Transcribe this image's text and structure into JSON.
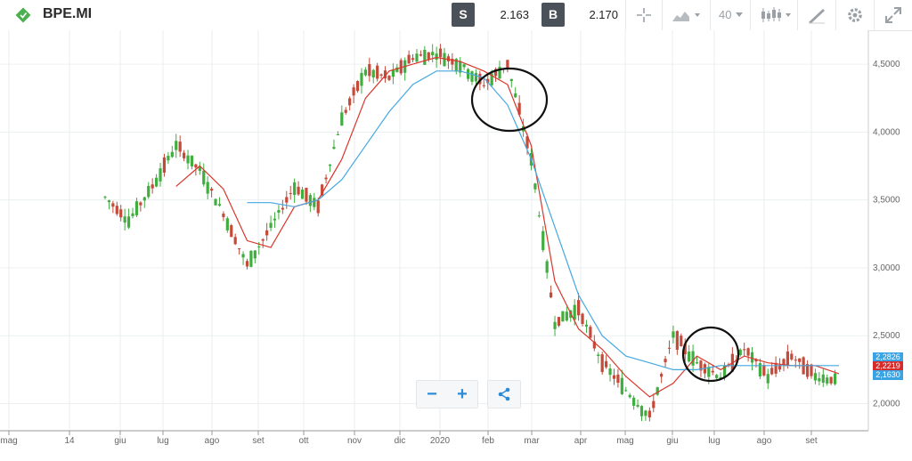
{
  "header": {
    "symbol": "BPE.MI",
    "sell_label": "S",
    "sell_price": "2.163",
    "buy_label": "B",
    "buy_price": "2.170",
    "timeframe_label": "40"
  },
  "colors": {
    "sell": "#4b5158",
    "buy": "#4b5158",
    "accent": "#2e8bd6",
    "ma_red": "#d9372b",
    "ma_blue": "#45a8e0",
    "candle_up": "#3fae3f",
    "candle_down": "#c44a3a",
    "logo": "#4caf50"
  },
  "icons": {
    "logo": "diamond-logo-icon",
    "crosshair": "crosshair-icon",
    "chart_type": "area-chart-icon",
    "candles": "candles-icon",
    "draw": "pencil-draw-icon",
    "settings": "gear-icon",
    "expand": "expand-icon",
    "zoom_out": "minus-icon",
    "zoom_in": "plus-icon",
    "share": "share-icon"
  },
  "zoom": {
    "minus": "−",
    "plus": "+"
  },
  "price_tags": {
    "upper": "2,2826",
    "middle": "2,2219",
    "lower": "2,1630"
  },
  "chart_data": {
    "type": "line",
    "title": "",
    "xlabel": "",
    "ylabel": "",
    "x_ticks": [
      "mag",
      "14",
      "giu",
      "lug",
      "ago",
      "set",
      "ott",
      "nov",
      "dic",
      "2020",
      "feb",
      "mar",
      "apr",
      "mag",
      "giu",
      "lug",
      "ago",
      "set"
    ],
    "y_ticks": [
      "2,0000",
      "2,5000",
      "3,0000",
      "3,5000",
      "4,0000",
      "4,5000"
    ],
    "ylim": [
      1.8,
      4.75
    ],
    "grid": true,
    "x": [
      "giu",
      "",
      "lug",
      "",
      "ago",
      "",
      "set",
      "",
      "ott",
      "",
      "nov",
      "",
      "dic",
      "",
      "2020",
      "",
      "feb",
      "",
      "mar",
      "",
      "apr",
      "",
      "mag",
      "",
      "giu",
      "",
      "lug",
      "",
      "ago",
      "",
      "set",
      ""
    ],
    "series": [
      {
        "name": "",
        "values": [
          3.52,
          3.35,
          3.6,
          3.9,
          3.72,
          3.4,
          3.02,
          3.3,
          3.6,
          3.45,
          4.1,
          4.45,
          4.4,
          4.55,
          4.58,
          4.5,
          4.35,
          4.5,
          3.8,
          2.6,
          2.7,
          2.3,
          2.1,
          1.9,
          2.5,
          2.3,
          2.2,
          2.4,
          2.2,
          2.35,
          2.2,
          2.17
        ]
      },
      {
        "name": "",
        "values": [
          null,
          null,
          null,
          3.6,
          3.75,
          3.58,
          3.2,
          3.15,
          3.45,
          3.5,
          3.8,
          4.25,
          4.45,
          4.5,
          4.55,
          4.52,
          4.45,
          4.35,
          3.9,
          2.9,
          2.55,
          2.4,
          2.2,
          2.05,
          2.15,
          2.35,
          2.25,
          2.35,
          2.3,
          2.28,
          2.28,
          2.22
        ]
      },
      {
        "name": "",
        "values": [
          null,
          null,
          null,
          null,
          null,
          null,
          3.48,
          3.48,
          3.45,
          3.5,
          3.65,
          3.9,
          4.15,
          4.35,
          4.45,
          4.45,
          4.4,
          4.2,
          3.8,
          3.3,
          2.8,
          2.5,
          2.35,
          2.3,
          2.25,
          2.25,
          2.28,
          2.28,
          2.28,
          2.28,
          2.28,
          2.28
        ]
      }
    ],
    "annotations": [
      "circle-feb",
      "circle-lug"
    ]
  }
}
